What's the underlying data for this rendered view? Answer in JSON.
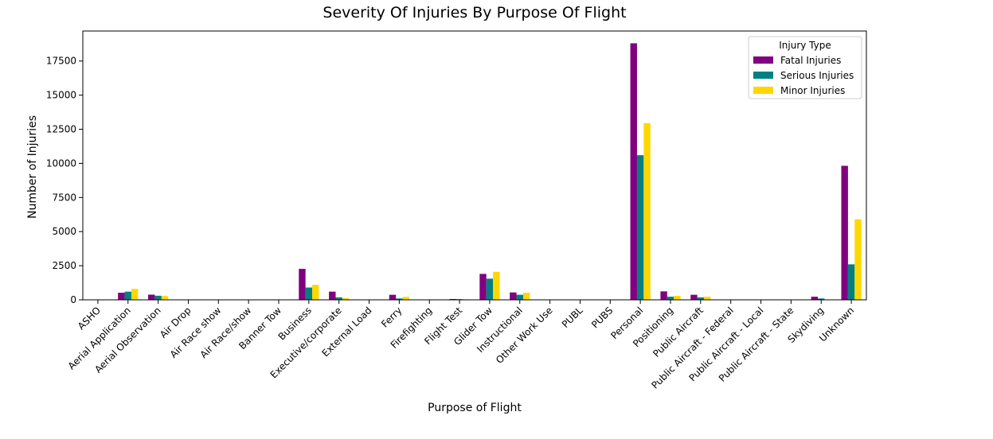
{
  "chart_data": {
    "type": "bar",
    "title": "Severity Of Injuries By Purpose Of Flight",
    "xlabel": "Purpose of Flight",
    "ylabel": "Number of Injuries",
    "ylim": [
      0,
      19700
    ],
    "yticks": [
      0,
      2500,
      5000,
      7500,
      10000,
      12500,
      15000,
      17500
    ],
    "grid": false,
    "legend": {
      "title": "Injury Type",
      "placement": "top-right"
    },
    "categories": [
      "ASHO",
      "Aerial Application",
      "Aerial Observation",
      "Air Drop",
      "Air Race show",
      "Air Race/show",
      "Banner Tow",
      "Business",
      "Executive/corporate",
      "External Load",
      "Ferry",
      "Firefighting",
      "Flight Test",
      "Glider Tow",
      "Instructional",
      "Other Work Use",
      "PUBL",
      "PUBS",
      "Personal",
      "Positioning",
      "Public Aircraft",
      "Public Aircraft - Federal",
      "Public Aircraft - Local",
      "Public Aircraft - State",
      "Skydiving",
      "Unknown"
    ],
    "series": [
      {
        "name": "Fatal Injuries",
        "color": "#800080",
        "values": [
          0,
          520,
          380,
          0,
          0,
          0,
          0,
          2270,
          600,
          0,
          370,
          0,
          60,
          1900,
          540,
          0,
          0,
          0,
          18800,
          620,
          370,
          0,
          0,
          0,
          230,
          9820
        ]
      },
      {
        "name": "Serious Injuries",
        "color": "#008080",
        "values": [
          0,
          600,
          300,
          0,
          0,
          0,
          0,
          900,
          180,
          0,
          100,
          0,
          50,
          1550,
          370,
          0,
          0,
          0,
          10600,
          230,
          180,
          0,
          0,
          0,
          100,
          2600
        ]
      },
      {
        "name": "Minor Injuries",
        "color": "#FFD700",
        "values": [
          0,
          800,
          280,
          0,
          0,
          0,
          0,
          1100,
          130,
          0,
          220,
          0,
          40,
          2050,
          520,
          0,
          0,
          0,
          12950,
          290,
          230,
          0,
          0,
          0,
          0,
          5900
        ]
      }
    ]
  }
}
